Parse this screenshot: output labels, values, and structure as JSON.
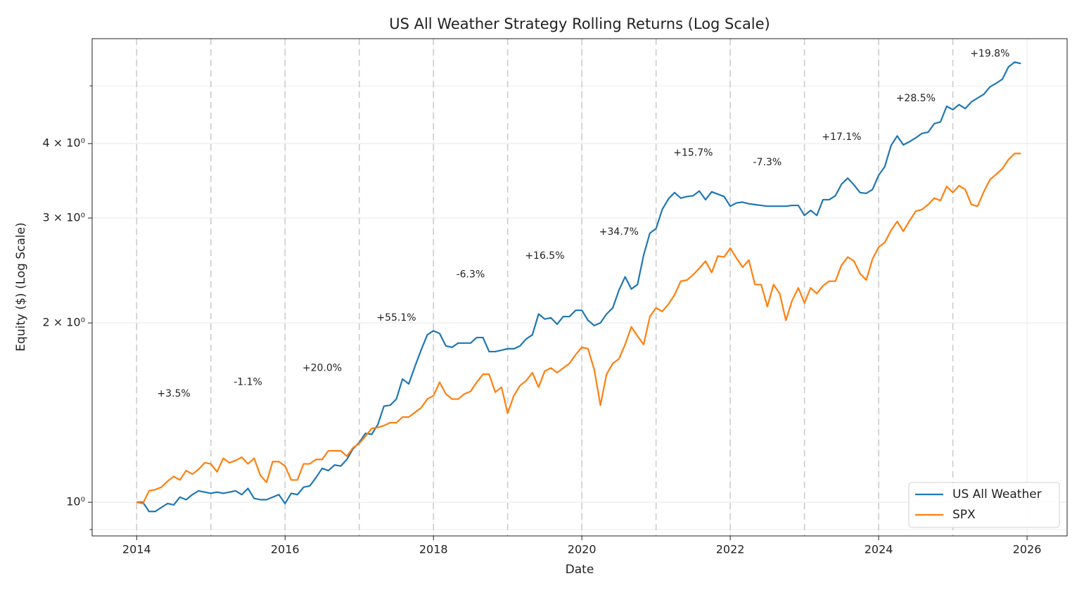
{
  "chart_data": {
    "type": "line",
    "title": "US All Weather Strategy Rolling Returns (Log Scale)",
    "xlabel": "Date",
    "ylabel": "Equity ($) (Log Scale)",
    "log_y": true,
    "grid": true,
    "legend": "lower right",
    "xlim": [
      2013.4,
      2026.54
    ],
    "xticks": [
      2014,
      2016,
      2018,
      2020,
      2022,
      2024,
      2026
    ],
    "ylim": [
      0.878,
      6.0
    ],
    "yticks": [
      {
        "value": 1,
        "label": "10⁰"
      },
      {
        "value": 2,
        "label": "2 × 10⁰"
      },
      {
        "value": 3,
        "label": "3 × 10⁰"
      },
      {
        "value": 4,
        "label": "4 × 10⁰"
      }
    ],
    "yticks_minor": [
      0.9,
      5
    ],
    "year_lines": [
      2014,
      2015,
      2016,
      2017,
      2018,
      2019,
      2020,
      2021,
      2022,
      2023,
      2024,
      2025
    ],
    "x": [
      2014,
      2014.083,
      2014.167,
      2014.25,
      2014.333,
      2014.417,
      2014.5,
      2014.583,
      2014.667,
      2014.75,
      2014.833,
      2014.917,
      2015,
      2015.083,
      2015.167,
      2015.25,
      2015.333,
      2015.417,
      2015.5,
      2015.583,
      2015.667,
      2015.75,
      2015.833,
      2015.917,
      2016,
      2016.083,
      2016.167,
      2016.25,
      2016.333,
      2016.417,
      2016.5,
      2016.583,
      2016.667,
      2016.75,
      2016.833,
      2016.917,
      2017,
      2017.083,
      2017.167,
      2017.25,
      2017.333,
      2017.417,
      2017.5,
      2017.583,
      2017.667,
      2017.75,
      2017.833,
      2017.917,
      2018,
      2018.083,
      2018.167,
      2018.25,
      2018.333,
      2018.417,
      2018.5,
      2018.583,
      2018.667,
      2018.75,
      2018.833,
      2018.917,
      2019,
      2019.083,
      2019.167,
      2019.25,
      2019.333,
      2019.417,
      2019.5,
      2019.583,
      2019.667,
      2019.75,
      2019.833,
      2019.917,
      2020,
      2020.083,
      2020.167,
      2020.25,
      2020.333,
      2020.417,
      2020.5,
      2020.583,
      2020.667,
      2020.75,
      2020.833,
      2020.917,
      2021,
      2021.083,
      2021.167,
      2021.25,
      2021.333,
      2021.417,
      2021.5,
      2021.583,
      2021.667,
      2021.75,
      2021.833,
      2021.917,
      2022,
      2022.083,
      2022.167,
      2022.25,
      2022.333,
      2022.417,
      2022.5,
      2022.583,
      2022.667,
      2022.75,
      2022.833,
      2022.917,
      2023,
      2023.083,
      2023.167,
      2023.25,
      2023.333,
      2023.417,
      2023.5,
      2023.583,
      2023.667,
      2023.75,
      2023.833,
      2023.917,
      2024,
      2024.083,
      2024.167,
      2024.25,
      2024.333,
      2024.417,
      2024.5,
      2024.583,
      2024.667,
      2024.75,
      2024.833,
      2024.917,
      2025,
      2025.083,
      2025.167,
      2025.25,
      2025.333,
      2025.417,
      2025.5,
      2025.583,
      2025.667,
      2025.75,
      2025.833,
      2025.917
    ],
    "series": [
      {
        "name": "US All Weather",
        "color": "#1f77b4",
        "values": [
          1.0,
          1.0,
          0.965,
          0.965,
          0.98,
          0.995,
          0.99,
          1.02,
          1.01,
          1.03,
          1.045,
          1.04,
          1.035,
          1.04,
          1.035,
          1.04,
          1.045,
          1.03,
          1.055,
          1.015,
          1.01,
          1.01,
          1.02,
          1.03,
          0.995,
          1.035,
          1.03,
          1.06,
          1.065,
          1.1,
          1.14,
          1.13,
          1.155,
          1.15,
          1.18,
          1.23,
          1.26,
          1.305,
          1.3,
          1.35,
          1.45,
          1.455,
          1.49,
          1.61,
          1.58,
          1.69,
          1.8,
          1.91,
          1.94,
          1.92,
          1.83,
          1.82,
          1.85,
          1.85,
          1.85,
          1.89,
          1.89,
          1.79,
          1.79,
          1.8,
          1.81,
          1.81,
          1.83,
          1.88,
          1.91,
          2.07,
          2.03,
          2.04,
          1.99,
          2.05,
          2.05,
          2.1,
          2.1,
          2.02,
          1.98,
          2.0,
          2.07,
          2.12,
          2.27,
          2.39,
          2.28,
          2.32,
          2.6,
          2.83,
          2.88,
          3.1,
          3.23,
          3.31,
          3.24,
          3.26,
          3.27,
          3.33,
          3.22,
          3.32,
          3.29,
          3.26,
          3.14,
          3.18,
          3.19,
          3.17,
          3.16,
          3.15,
          3.14,
          3.14,
          3.14,
          3.14,
          3.15,
          3.15,
          3.03,
          3.09,
          3.03,
          3.22,
          3.22,
          3.27,
          3.42,
          3.5,
          3.41,
          3.31,
          3.3,
          3.35,
          3.54,
          3.66,
          3.97,
          4.12,
          3.98,
          4.03,
          4.09,
          4.16,
          4.18,
          4.32,
          4.35,
          4.62,
          4.56,
          4.65,
          4.58,
          4.7,
          4.77,
          4.84,
          4.98,
          5.05,
          5.13,
          5.38,
          5.48,
          5.45
        ]
      },
      {
        "name": "SPX",
        "color": "#ff7f0e",
        "values": [
          1.0,
          0.995,
          1.045,
          1.05,
          1.06,
          1.085,
          1.105,
          1.09,
          1.13,
          1.115,
          1.135,
          1.165,
          1.16,
          1.125,
          1.185,
          1.165,
          1.175,
          1.19,
          1.16,
          1.185,
          1.11,
          1.08,
          1.17,
          1.17,
          1.15,
          1.09,
          1.09,
          1.16,
          1.16,
          1.18,
          1.18,
          1.22,
          1.22,
          1.22,
          1.195,
          1.235,
          1.255,
          1.29,
          1.33,
          1.335,
          1.345,
          1.36,
          1.36,
          1.39,
          1.39,
          1.415,
          1.44,
          1.49,
          1.51,
          1.59,
          1.52,
          1.49,
          1.49,
          1.52,
          1.535,
          1.59,
          1.64,
          1.64,
          1.53,
          1.56,
          1.41,
          1.51,
          1.57,
          1.6,
          1.65,
          1.56,
          1.66,
          1.68,
          1.65,
          1.68,
          1.71,
          1.77,
          1.82,
          1.81,
          1.67,
          1.455,
          1.64,
          1.71,
          1.74,
          1.84,
          1.97,
          1.9,
          1.84,
          2.05,
          2.12,
          2.09,
          2.15,
          2.23,
          2.35,
          2.36,
          2.41,
          2.47,
          2.54,
          2.43,
          2.59,
          2.58,
          2.67,
          2.57,
          2.48,
          2.55,
          2.32,
          2.32,
          2.13,
          2.32,
          2.24,
          2.02,
          2.18,
          2.29,
          2.16,
          2.29,
          2.24,
          2.31,
          2.35,
          2.35,
          2.5,
          2.58,
          2.54,
          2.42,
          2.36,
          2.56,
          2.68,
          2.73,
          2.86,
          2.96,
          2.85,
          2.97,
          3.08,
          3.1,
          3.16,
          3.24,
          3.21,
          3.39,
          3.31,
          3.4,
          3.35,
          3.16,
          3.14,
          3.32,
          3.48,
          3.55,
          3.63,
          3.76,
          3.85,
          3.85
        ]
      }
    ],
    "annotations": [
      {
        "text": "+3.5%",
        "x": 2014.5,
        "y": 1.52
      },
      {
        "text": "-1.1%",
        "x": 2015.5,
        "y": 1.59
      },
      {
        "text": "+20.0%",
        "x": 2016.5,
        "y": 1.68
      },
      {
        "text": "+55.1%",
        "x": 2017.5,
        "y": 2.04
      },
      {
        "text": "-6.3%",
        "x": 2018.5,
        "y": 2.41
      },
      {
        "text": "+16.5%",
        "x": 2019.5,
        "y": 2.59
      },
      {
        "text": "+34.7%",
        "x": 2020.5,
        "y": 2.84
      },
      {
        "text": "+15.7%",
        "x": 2021.5,
        "y": 3.86
      },
      {
        "text": "-7.3%",
        "x": 2022.5,
        "y": 3.72
      },
      {
        "text": "+17.1%",
        "x": 2023.5,
        "y": 4.1
      },
      {
        "text": "+28.5%",
        "x": 2024.5,
        "y": 4.76
      },
      {
        "text": "+19.8%",
        "x": 2025.5,
        "y": 5.66
      }
    ]
  }
}
